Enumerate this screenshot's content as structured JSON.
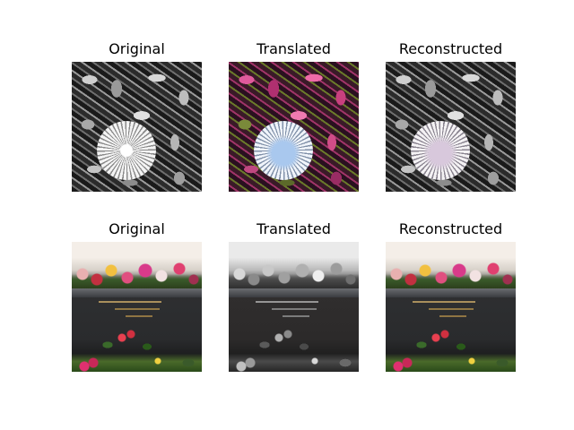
{
  "rows": [
    {
      "panels": [
        {
          "title": "Original",
          "image": "grayscale dandelion on foliage"
        },
        {
          "title": "Translated",
          "image": "colorized dandelion with pink foliage"
        },
        {
          "title": "Reconstructed",
          "image": "grayscale dandelion on foliage"
        }
      ]
    },
    {
      "panels": [
        {
          "title": "Original",
          "image": "color grave with flowers"
        },
        {
          "title": "Translated",
          "image": "grayscale grave with flowers"
        },
        {
          "title": "Reconstructed",
          "image": "color grave with flowers"
        }
      ]
    }
  ]
}
